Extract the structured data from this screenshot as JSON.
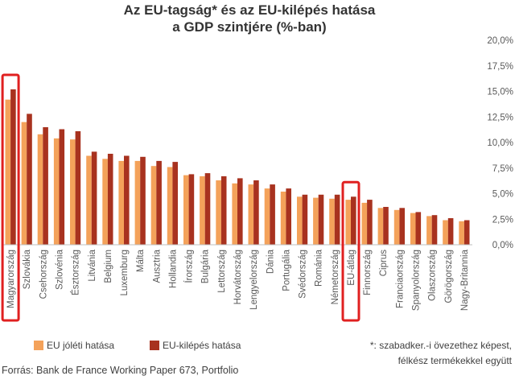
{
  "chart_data": {
    "type": "bar",
    "title_lines": [
      "Az EU-tagság* és az EU-kilépés hatása",
      "a GDP szintjére (%-ban)"
    ],
    "categories": [
      "Magyarország",
      "Szlovákia",
      "Csehország",
      "Szlovénia",
      "Észtország",
      "Litvánia",
      "Belgium",
      "Luxemburg",
      "Málta",
      "Ausztria",
      "Hollandia",
      "Írország",
      "Bulgária",
      "Lettország",
      "Horvátország",
      "Lengyelország",
      "Dánia",
      "Portugália",
      "Svédország",
      "Románia",
      "Németország",
      "EU-átlag",
      "Finnország",
      "Ciprus",
      "Franciaország",
      "Spanyolország",
      "Olaszország",
      "Görögország",
      "Nagy-Britannia"
    ],
    "series": [
      {
        "name": "EU jóléti hatása",
        "color": "#F4A25A",
        "values": [
          14.2,
          12.0,
          10.8,
          10.4,
          10.3,
          8.7,
          8.4,
          8.2,
          8.2,
          7.7,
          7.6,
          6.8,
          6.7,
          6.3,
          6.0,
          5.9,
          5.5,
          5.2,
          4.7,
          4.6,
          4.5,
          4.4,
          4.1,
          3.6,
          3.4,
          3.1,
          2.8,
          2.4,
          2.3
        ]
      },
      {
        "name": "EU-kilépés hatása",
        "color": "#A8321F",
        "values": [
          15.2,
          12.8,
          11.5,
          11.3,
          11.1,
          9.1,
          8.9,
          8.7,
          8.6,
          8.2,
          8.1,
          6.9,
          7.0,
          6.7,
          6.5,
          6.3,
          5.9,
          5.5,
          4.9,
          4.9,
          4.9,
          4.7,
          4.4,
          3.7,
          3.6,
          3.2,
          2.9,
          2.6,
          2.4
        ]
      }
    ],
    "y_ticks": [
      "0,0%",
      "2,5%",
      "5,0%",
      "7,5%",
      "10,0%",
      "12,5%",
      "15,0%",
      "17,5%",
      "20,0%"
    ],
    "ylim": [
      0,
      20
    ],
    "grid": false,
    "highlighted_categories": [
      "Magyarország",
      "EU-átlag"
    ],
    "highlight_color": "#E02020",
    "legend_position": "bottom-left",
    "footnote": [
      "*: szabadker.-i övezethez képest,",
      "félkész termékekkel együtt"
    ],
    "source": "Forrás: Bank de France Working Paper 673, Portfolio"
  }
}
